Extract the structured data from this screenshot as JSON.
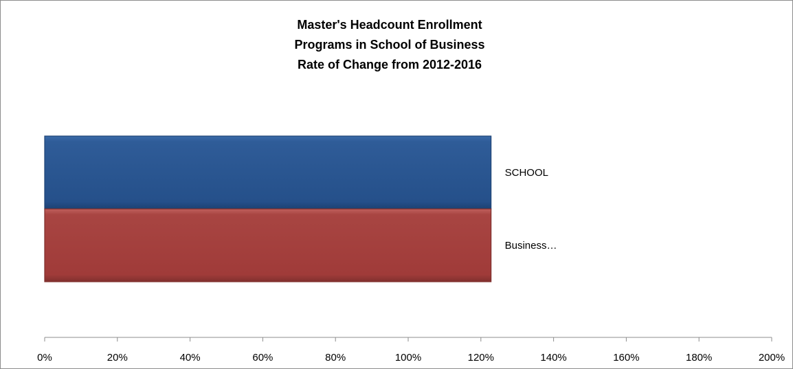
{
  "chart_data": {
    "type": "bar",
    "orientation": "horizontal",
    "title_lines": [
      "Master's Headcount Enrollment",
      "Programs in School of Business",
      "Rate of Change from 2012-2016"
    ],
    "xlabel": "",
    "ylabel": "",
    "xlim": [
      0,
      200
    ],
    "x_ticks": [
      "0%",
      "20%",
      "40%",
      "60%",
      "80%",
      "100%",
      "120%",
      "140%",
      "160%",
      "180%",
      "200%"
    ],
    "categories": [
      "SCHOOL",
      "Business…"
    ],
    "series": [
      {
        "values": [
          122.8,
          122.8
        ]
      }
    ],
    "bar_colors": [
      "#2b5790",
      "#a33d3b"
    ],
    "grid": false,
    "legend": "none"
  }
}
